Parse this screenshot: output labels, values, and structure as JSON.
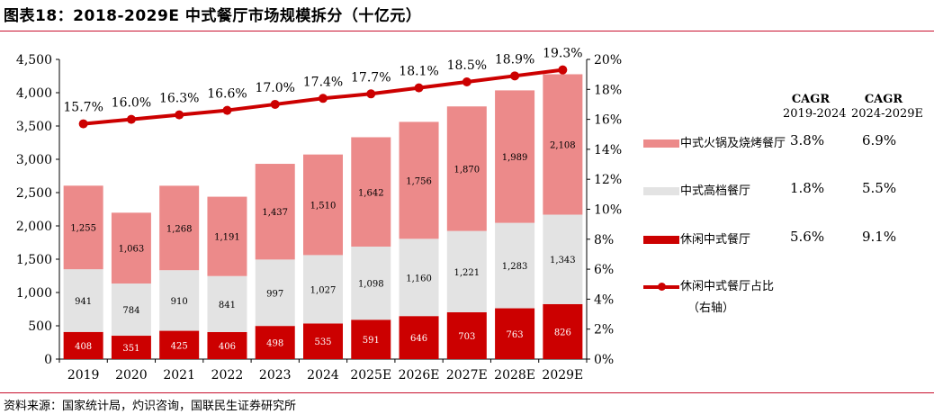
{
  "title": "图表18：2018-2029E 中式餐厅市场规模拆分（十亿元）",
  "source": "资料来源：国家统计局，灼识咨询，国联民生证券研究所",
  "colors": {
    "hotpot": "#ec8a8a",
    "highend": "#e3e3e3",
    "casual": "#cc0000",
    "line": "#cc0000",
    "rule": "#c8102e"
  },
  "cagr": {
    "header": "CAGR",
    "period1": "2019-2024",
    "period2": "2024-2029E",
    "rows": [
      {
        "name": "中式火锅及烧烤餐厅",
        "v1": "3.8%",
        "v2": "6.9%"
      },
      {
        "name": "中式高档餐厅",
        "v1": "1.8%",
        "v2": "5.5%"
      },
      {
        "name": "休闲中式餐厅",
        "v1": "5.6%",
        "v2": "9.1%"
      }
    ],
    "line_label": "休闲中式餐厅占比",
    "line_label_sub": "（右轴）"
  },
  "chart_data": {
    "type": "bar",
    "stacked": true,
    "categories": [
      "2019",
      "2020",
      "2021",
      "2022",
      "2023",
      "2024",
      "2025E",
      "2026E",
      "2027E",
      "2028E",
      "2029E"
    ],
    "series": [
      {
        "name": "休闲中式餐厅",
        "values": [
          408,
          351,
          425,
          406,
          498,
          535,
          591,
          646,
          703,
          763,
          826
        ],
        "labels": [
          "408",
          "351",
          "425",
          "406",
          "498",
          "535",
          "591",
          "646",
          "703",
          "763",
          "826"
        ]
      },
      {
        "name": "中式高档餐厅",
        "values": [
          941,
          784,
          910,
          841,
          997,
          1027,
          1098,
          1160,
          1221,
          1283,
          1343
        ],
        "labels": [
          "941",
          "784",
          "910",
          "841",
          "997",
          "1,027",
          "1,098",
          "1,160",
          "1,221",
          "1,283",
          "1,343"
        ]
      },
      {
        "name": "中式火锅及烧烤餐厅",
        "values": [
          1255,
          1063,
          1268,
          1191,
          1437,
          1510,
          1642,
          1756,
          1870,
          1989,
          2108
        ],
        "labels": [
          "1,255",
          "1,063",
          "1,268",
          "1,191",
          "1,437",
          "1,510",
          "1,642",
          "1,756",
          "1,870",
          "1,989",
          "2,108"
        ]
      }
    ],
    "line_series": {
      "name": "休闲中式餐厅占比",
      "axis": "right",
      "values": [
        15.7,
        16.0,
        16.3,
        16.6,
        17.0,
        17.4,
        17.7,
        18.1,
        18.5,
        18.9,
        19.3
      ],
      "labels": [
        "15.7%",
        "16.0%",
        "16.3%",
        "16.6%",
        "17.0%",
        "17.4%",
        "17.7%",
        "18.1%",
        "18.5%",
        "18.9%",
        "19.3%"
      ]
    },
    "ylim": [
      0,
      4500
    ],
    "yticks": [
      0,
      500,
      1000,
      1500,
      2000,
      2500,
      3000,
      3500,
      4000,
      4500
    ],
    "ytick_labels": [
      "0",
      "500",
      "1,000",
      "1,500",
      "2,000",
      "2,500",
      "3,000",
      "3,500",
      "4,000",
      "4,500"
    ],
    "y2lim": [
      0,
      20
    ],
    "y2ticks": [
      0,
      2,
      4,
      6,
      8,
      10,
      12,
      14,
      16,
      18,
      20
    ],
    "y2tick_labels": [
      "0%",
      "2%",
      "4%",
      "6%",
      "8%",
      "10%",
      "12%",
      "14%",
      "16%",
      "18%",
      "20%"
    ],
    "legend": "right",
    "grid": false
  }
}
